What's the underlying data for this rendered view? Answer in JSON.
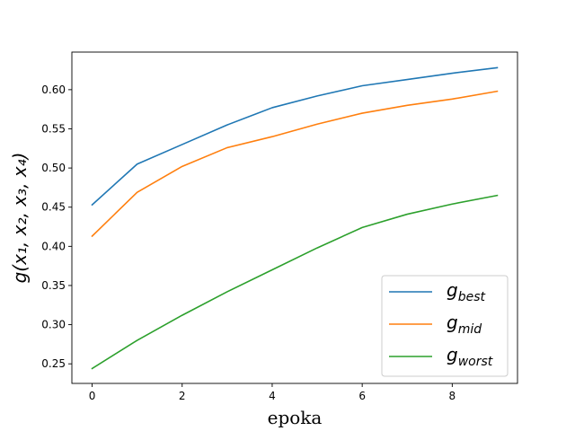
{
  "chart_data": {
    "type": "line",
    "x": [
      0,
      1,
      2,
      3,
      4,
      5,
      6,
      7,
      8,
      9
    ],
    "series": [
      {
        "name": "g_best",
        "label_main": "g",
        "label_sub": "best",
        "color": "#1f77b4",
        "values": [
          0.453,
          0.505,
          0.53,
          0.555,
          0.577,
          0.592,
          0.605,
          0.613,
          0.621,
          0.628
        ]
      },
      {
        "name": "g_mid",
        "label_main": "g",
        "label_sub": "mid",
        "color": "#ff7f0e",
        "values": [
          0.413,
          0.469,
          0.502,
          0.526,
          0.54,
          0.556,
          0.57,
          0.58,
          0.588,
          0.598
        ]
      },
      {
        "name": "g_worst",
        "label_main": "g",
        "label_sub": "worst",
        "color": "#2ca02c",
        "values": [
          0.244,
          0.28,
          0.312,
          0.342,
          0.37,
          0.398,
          0.424,
          0.441,
          0.454,
          0.465
        ]
      }
    ],
    "xlabel": "epoka",
    "ylabel": "g(x₁, x₂, x₃, x₄)",
    "xlim": [
      -0.45,
      9.45
    ],
    "ylim": [
      0.225,
      0.648
    ],
    "xticks": [
      0,
      2,
      4,
      6,
      8
    ],
    "xtick_labels": [
      "0",
      "2",
      "4",
      "6",
      "8"
    ],
    "yticks": [
      0.25,
      0.3,
      0.35,
      0.4,
      0.45,
      0.5,
      0.55,
      0.6
    ],
    "ytick_labels": [
      "0.25",
      "0.30",
      "0.35",
      "0.40",
      "0.45",
      "0.50",
      "0.55",
      "0.60"
    ],
    "grid": false,
    "legend_position": "lower-right"
  }
}
